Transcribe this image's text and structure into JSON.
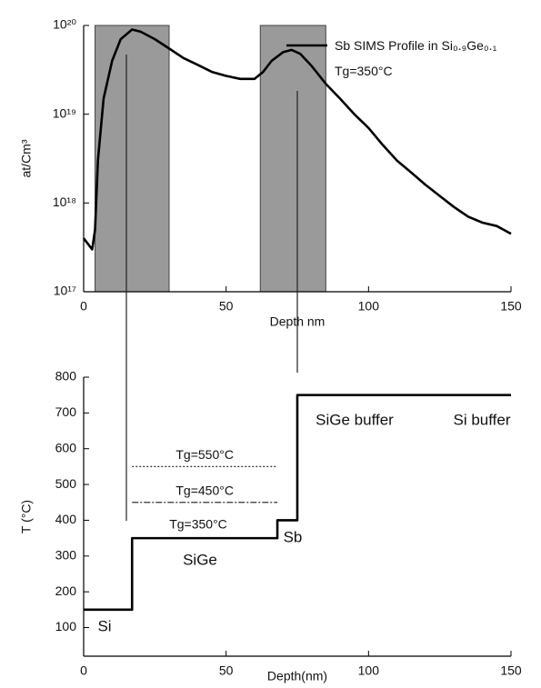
{
  "chart_data": [
    {
      "type": "line",
      "log_scale_y": true,
      "grid": false,
      "y_label": "at/Cm³",
      "x_label": "Depth nm",
      "xlim": [
        0,
        150
      ],
      "xticks": [
        0,
        50,
        100,
        150
      ],
      "ylim": [
        1e+17,
        1e+20
      ],
      "yticks": [
        {
          "value": 1e+17,
          "label": "10¹⁷"
        },
        {
          "value": 1e+18,
          "label": "10¹⁸"
        },
        {
          "value": 1e+19,
          "label": "10¹⁹"
        },
        {
          "value": 1e+20,
          "label": "10²⁰"
        }
      ],
      "shaded_regions": [
        [
          4,
          30
        ],
        [
          62,
          85
        ]
      ],
      "guide_lines": [
        15,
        75
      ],
      "x": [
        0,
        3,
        4,
        5,
        7,
        10,
        13,
        17,
        20,
        25,
        30,
        35,
        40,
        45,
        50,
        55,
        60,
        63,
        66,
        70,
        73,
        76,
        80,
        85,
        90,
        95,
        100,
        105,
        110,
        115,
        120,
        125,
        130,
        135,
        140,
        145,
        150
      ],
      "series": [
        {
          "name": "Sb SIMS Profile in Si₀.₉Ge₀.₁ Tg=350°C",
          "color": "#000000",
          "values": [
            4e+17,
            3e+17,
            5e+17,
            3e+18,
            1.5e+19,
            4e+19,
            7e+19,
            9e+19,
            8.5e+19,
            7e+19,
            5.5e+19,
            4.3e+19,
            3.6e+19,
            3e+19,
            2.7e+19,
            2.5e+19,
            2.5e+19,
            3e+19,
            4e+19,
            5e+19,
            5.3e+19,
            4.8e+19,
            3.5e+19,
            2.2e+19,
            1.5e+19,
            1e+19,
            7e+18,
            4.5e+18,
            3e+18,
            2.2e+18,
            1.6e+18,
            1.2e+18,
            9e+17,
            7e+17,
            6e+17,
            5.5e+17,
            4.5e+17
          ]
        }
      ]
    },
    {
      "type": "line",
      "log_scale_y": false,
      "grid": false,
      "y_label": "T (°C)",
      "x_label": "Depth(nm)",
      "xlim": [
        0,
        150
      ],
      "xticks": [
        0,
        50,
        100,
        150
      ],
      "ylim": [
        20,
        800
      ],
      "yticks": [
        100,
        200,
        300,
        400,
        500,
        600,
        700,
        800
      ],
      "x": [
        0,
        17,
        17,
        68,
        68,
        75,
        75,
        150
      ],
      "series": [
        {
          "color": "#000000",
          "values": [
            150,
            150,
            350,
            350,
            400,
            400,
            750,
            750
          ]
        }
      ],
      "reference_lines": [
        {
          "label": "Tg=550°C",
          "y": 550,
          "x": [
            17,
            68
          ],
          "style": "dotted"
        },
        {
          "label": "Tg=450°C",
          "y": 450,
          "x": [
            17,
            68
          ],
          "style": "dashdot"
        }
      ],
      "annotations": [
        "Tg=350°C",
        "Si",
        "SiGe",
        "Sb",
        "SiGe buffer",
        "Si buffer"
      ]
    }
  ]
}
